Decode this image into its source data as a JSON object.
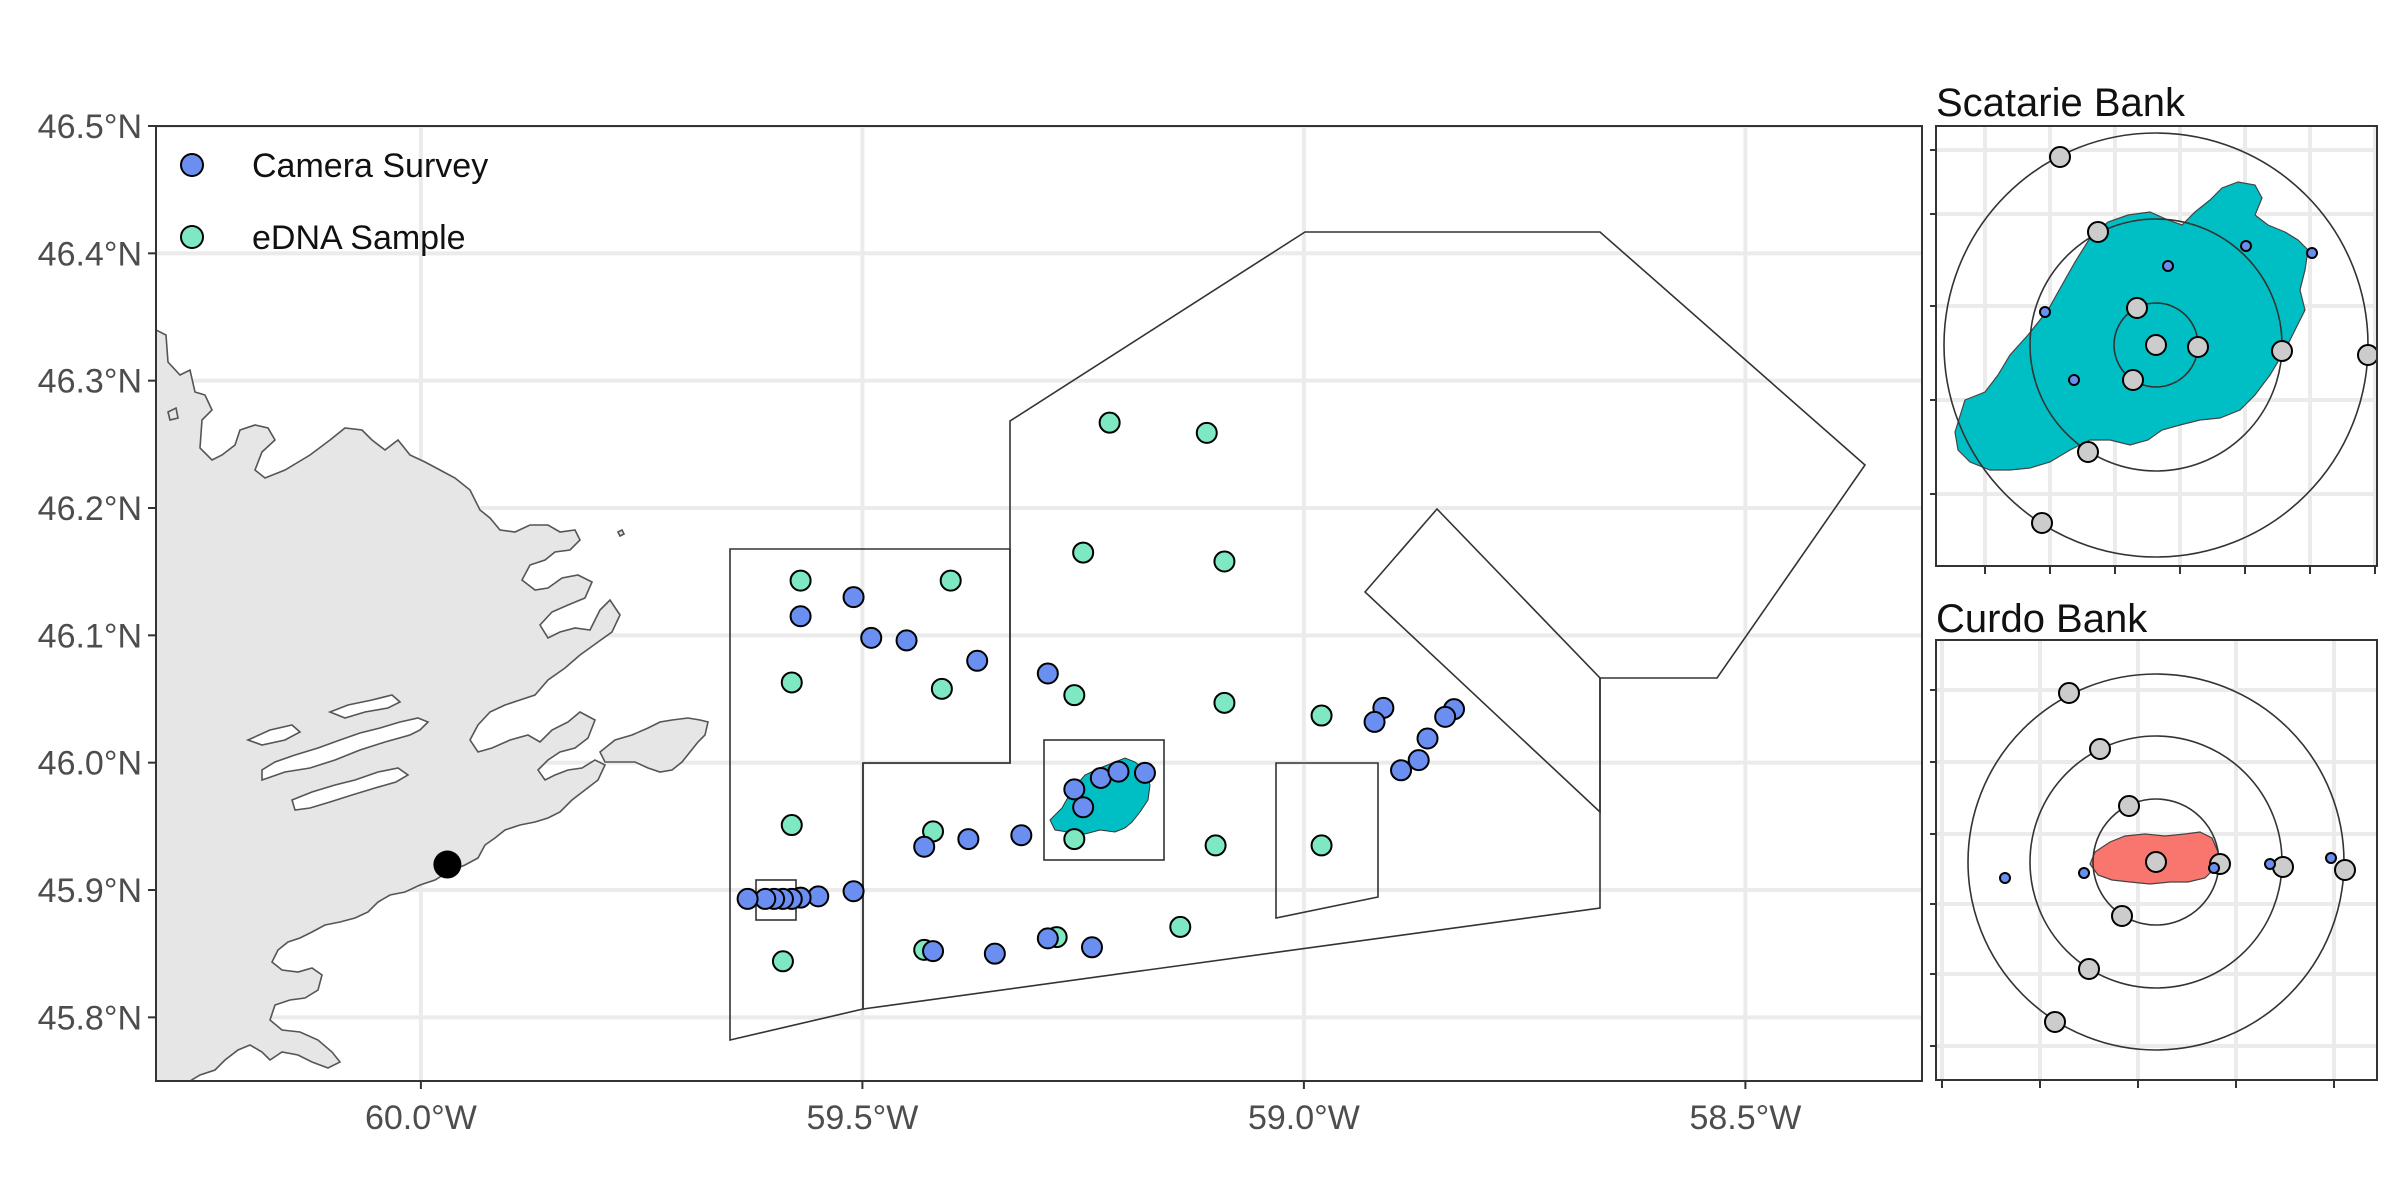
{
  "colors": {
    "camera": "#6b8ff0",
    "edna": "#7de8c2",
    "teal_patch": "#00bfc4",
    "red_patch": "#f8766d",
    "land": "#e6e6e6",
    "grid": "#ebebeb",
    "inset_point": "#cccccc",
    "station": "#000000"
  },
  "legend": {
    "camera_label": "Camera Survey",
    "edna_label": "eDNA Sample"
  },
  "axes": {
    "lon_range": [
      -60.3,
      -58.3
    ],
    "lat_range": [
      45.75,
      46.5
    ],
    "x_ticks": [
      {
        "value": -60.0,
        "label": "60.0°W"
      },
      {
        "value": -59.5,
        "label": "59.5°W"
      },
      {
        "value": -59.0,
        "label": "59.0°W"
      },
      {
        "value": -58.5,
        "label": "58.5°W"
      }
    ],
    "y_ticks": [
      {
        "value": 45.8,
        "label": "45.8°N"
      },
      {
        "value": 45.9,
        "label": "45.9°N"
      },
      {
        "value": 46.0,
        "label": "46.0°N"
      },
      {
        "value": 46.1,
        "label": "46.1°N"
      },
      {
        "value": 46.2,
        "label": "46.2°N"
      },
      {
        "value": 46.3,
        "label": "46.3°N"
      },
      {
        "value": 46.4,
        "label": "46.4°N"
      },
      {
        "value": 46.5,
        "label": "46.5°N"
      }
    ]
  },
  "station_point": {
    "lon": -59.97,
    "lat": 45.92
  },
  "camera_points": [
    {
      "lon": -59.51,
      "lat": 46.13
    },
    {
      "lon": -59.57,
      "lat": 46.115
    },
    {
      "lon": -59.49,
      "lat": 46.098
    },
    {
      "lon": -59.45,
      "lat": 46.096
    },
    {
      "lon": -59.37,
      "lat": 46.08
    },
    {
      "lon": -59.29,
      "lat": 46.07
    },
    {
      "lon": -59.43,
      "lat": 45.934
    },
    {
      "lon": -59.38,
      "lat": 45.94
    },
    {
      "lon": -59.32,
      "lat": 45.943
    },
    {
      "lon": -59.51,
      "lat": 45.899
    },
    {
      "lon": -59.55,
      "lat": 45.895
    },
    {
      "lon": -59.57,
      "lat": 45.894
    },
    {
      "lon": -59.58,
      "lat": 45.893
    },
    {
      "lon": -59.59,
      "lat": 45.893
    },
    {
      "lon": -59.6,
      "lat": 45.893
    },
    {
      "lon": -59.61,
      "lat": 45.893
    },
    {
      "lon": -59.63,
      "lat": 45.893
    },
    {
      "lon": -59.42,
      "lat": 45.852
    },
    {
      "lon": -59.35,
      "lat": 45.85
    },
    {
      "lon": -59.29,
      "lat": 45.862
    },
    {
      "lon": -59.24,
      "lat": 45.855
    },
    {
      "lon": -59.26,
      "lat": 45.979
    },
    {
      "lon": -59.25,
      "lat": 45.965
    },
    {
      "lon": -59.23,
      "lat": 45.988
    },
    {
      "lon": -59.21,
      "lat": 45.993
    },
    {
      "lon": -59.18,
      "lat": 45.992
    },
    {
      "lon": -58.91,
      "lat": 46.043
    },
    {
      "lon": -58.92,
      "lat": 46.032
    },
    {
      "lon": -58.83,
      "lat": 46.042
    },
    {
      "lon": -58.84,
      "lat": 46.036
    },
    {
      "lon": -58.86,
      "lat": 46.019
    },
    {
      "lon": -58.87,
      "lat": 46.002
    },
    {
      "lon": -58.89,
      "lat": 45.994
    }
  ],
  "edna_points": [
    {
      "lon": -59.22,
      "lat": 46.267
    },
    {
      "lon": -59.11,
      "lat": 46.259
    },
    {
      "lon": -59.25,
      "lat": 46.165
    },
    {
      "lon": -59.09,
      "lat": 46.158
    },
    {
      "lon": -59.57,
      "lat": 46.143
    },
    {
      "lon": -59.4,
      "lat": 46.143
    },
    {
      "lon": -59.58,
      "lat": 46.063
    },
    {
      "lon": -59.41,
      "lat": 46.058
    },
    {
      "lon": -59.26,
      "lat": 46.053
    },
    {
      "lon": -59.09,
      "lat": 46.047
    },
    {
      "lon": -58.98,
      "lat": 46.037
    },
    {
      "lon": -59.58,
      "lat": 45.951
    },
    {
      "lon": -59.42,
      "lat": 45.946
    },
    {
      "lon": -59.26,
      "lat": 45.94
    },
    {
      "lon": -59.1,
      "lat": 45.935
    },
    {
      "lon": -58.98,
      "lat": 45.935
    },
    {
      "lon": -59.59,
      "lat": 45.844
    },
    {
      "lon": -59.43,
      "lat": 45.853
    },
    {
      "lon": -59.28,
      "lat": 45.863
    },
    {
      "lon": -59.14,
      "lat": 45.871
    }
  ],
  "insets": {
    "scatarie_title": "Scatarie Bank",
    "curdo_title": "Curdo Bank"
  }
}
